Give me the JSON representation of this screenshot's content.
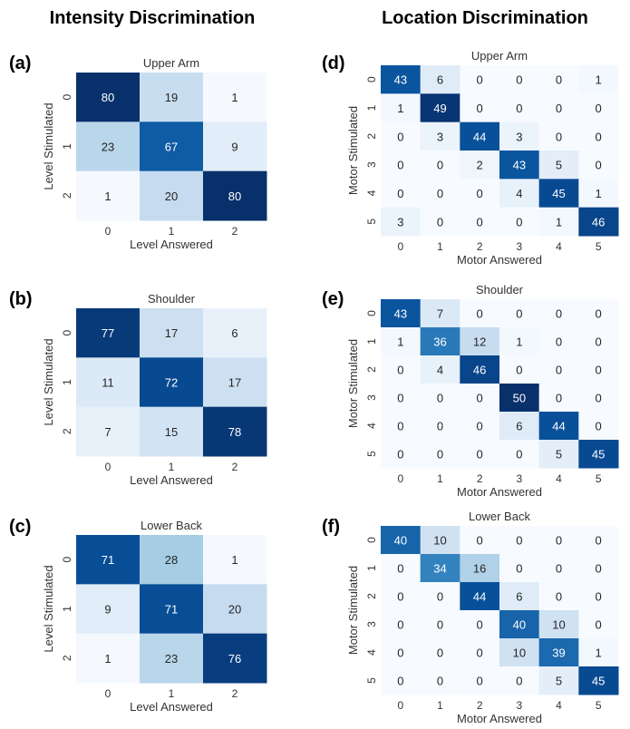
{
  "columns": {
    "left_title": "Intensity Discrimination",
    "right_title": "Location Discrimination"
  },
  "colors": {
    "low": "#f7fbff",
    "high": "#08306b"
  },
  "chart_data": [
    {
      "type": "heatmap",
      "panel": "(a)",
      "title": "Upper Arm",
      "xlabel": "Level Answered",
      "ylabel": "Level Stimulated",
      "x_ticks": [
        "0",
        "1",
        "2"
      ],
      "y_ticks": [
        "0",
        "1",
        "2"
      ],
      "vmax": 80,
      "values": [
        [
          80,
          19,
          1
        ],
        [
          23,
          67,
          9
        ],
        [
          1,
          20,
          80
        ]
      ]
    },
    {
      "type": "heatmap",
      "panel": "(b)",
      "title": "Shoulder",
      "xlabel": "Level Answered",
      "ylabel": "Level Stimulated",
      "x_ticks": [
        "0",
        "1",
        "2"
      ],
      "y_ticks": [
        "0",
        "1",
        "2"
      ],
      "vmax": 80,
      "values": [
        [
          77,
          17,
          6
        ],
        [
          11,
          72,
          17
        ],
        [
          7,
          15,
          78
        ]
      ]
    },
    {
      "type": "heatmap",
      "panel": "(c)",
      "title": "Lower Back",
      "xlabel": "Level Answered",
      "ylabel": "Level Stimulated",
      "x_ticks": [
        "0",
        "1",
        "2"
      ],
      "y_ticks": [
        "0",
        "1",
        "2"
      ],
      "vmax": 80,
      "values": [
        [
          71,
          28,
          1
        ],
        [
          9,
          71,
          20
        ],
        [
          1,
          23,
          76
        ]
      ]
    },
    {
      "type": "heatmap",
      "panel": "(d)",
      "title": "Upper Arm",
      "xlabel": "Motor Answered",
      "ylabel": "Motor Stimulated",
      "x_ticks": [
        "0",
        "1",
        "2",
        "3",
        "4",
        "5"
      ],
      "y_ticks": [
        "0",
        "1",
        "2",
        "3",
        "4",
        "5"
      ],
      "vmax": 50,
      "values": [
        [
          43,
          6,
          0,
          0,
          0,
          1
        ],
        [
          1,
          49,
          0,
          0,
          0,
          0
        ],
        [
          0,
          3,
          44,
          3,
          0,
          0
        ],
        [
          0,
          0,
          2,
          43,
          5,
          0
        ],
        [
          0,
          0,
          0,
          4,
          45,
          1
        ],
        [
          3,
          0,
          0,
          0,
          1,
          46
        ]
      ]
    },
    {
      "type": "heatmap",
      "panel": "(e)",
      "title": "Shoulder",
      "xlabel": "Motor Answered",
      "ylabel": "Motor Stimulated",
      "x_ticks": [
        "0",
        "1",
        "2",
        "3",
        "4",
        "5"
      ],
      "y_ticks": [
        "0",
        "1",
        "2",
        "3",
        "4",
        "5"
      ],
      "vmax": 50,
      "values": [
        [
          43,
          7,
          0,
          0,
          0,
          0
        ],
        [
          1,
          36,
          12,
          1,
          0,
          0
        ],
        [
          0,
          4,
          46,
          0,
          0,
          0
        ],
        [
          0,
          0,
          0,
          50,
          0,
          0
        ],
        [
          0,
          0,
          0,
          6,
          44,
          0
        ],
        [
          0,
          0,
          0,
          0,
          5,
          45
        ]
      ]
    },
    {
      "type": "heatmap",
      "panel": "(f)",
      "title": "Lower Back",
      "xlabel": "Motor Answered",
      "ylabel": "Motor Stimulated",
      "x_ticks": [
        "0",
        "1",
        "2",
        "3",
        "4",
        "5"
      ],
      "y_ticks": [
        "0",
        "1",
        "2",
        "3",
        "4",
        "5"
      ],
      "vmax": 50,
      "values": [
        [
          40,
          10,
          0,
          0,
          0,
          0
        ],
        [
          0,
          34,
          16,
          0,
          0,
          0
        ],
        [
          0,
          0,
          44,
          6,
          0,
          0
        ],
        [
          0,
          0,
          0,
          40,
          10,
          0
        ],
        [
          0,
          0,
          0,
          10,
          39,
          1
        ],
        [
          0,
          0,
          0,
          0,
          5,
          45
        ]
      ]
    }
  ]
}
